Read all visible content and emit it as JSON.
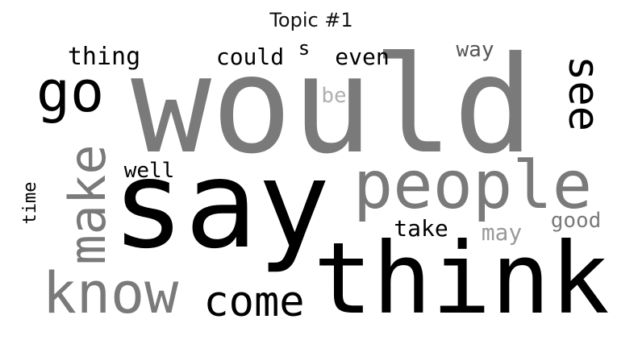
{
  "title": "Topic #1",
  "colors": {
    "black": "#000000",
    "dark_gray": "#555555",
    "gray": "#7a7a7a",
    "light_gray": "#9a9a9a",
    "lighter_gray": "#b0b0b0"
  },
  "words": {
    "would": "would",
    "say": "say",
    "think": "think",
    "people": "people",
    "know": "know",
    "come": "come",
    "go": "go",
    "see": "see",
    "make": "make",
    "time": "time",
    "thing": "thing",
    "could": "could",
    "s": "s",
    "even": "even",
    "way": "way",
    "be": "be",
    "well": "well",
    "take": "take",
    "may": "may",
    "good": "good"
  }
}
